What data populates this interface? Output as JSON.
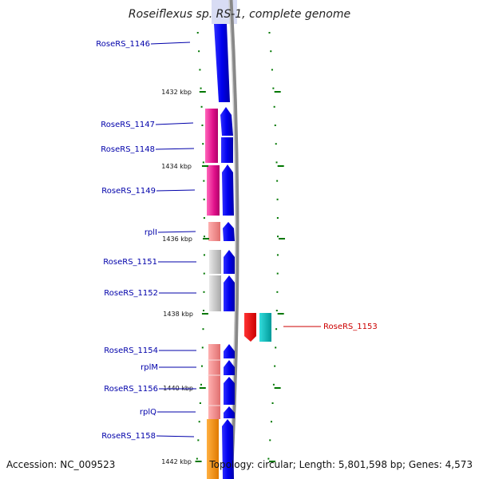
{
  "title": "Roseiflexus sp. RS-1, complete genome",
  "accession": "Accession: NC_009523",
  "topology": "Topology: circular; Length: 5,801,598 bp; Genes: 4,573",
  "ruler": [
    {
      "label": "1432 kbp"
    },
    {
      "label": "1434 kbp"
    },
    {
      "label": "1436 kbp"
    },
    {
      "label": "1438 kbp"
    },
    {
      "label": "1440 kbp"
    },
    {
      "label": "1442 kbp"
    }
  ],
  "genes": [
    {
      "label": "RoseRS_1146"
    },
    {
      "label": "RoseRS_1147"
    },
    {
      "label": "RoseRS_1148"
    },
    {
      "label": "RoseRS_1149"
    },
    {
      "label": "rplI"
    },
    {
      "label": "RoseRS_1151"
    },
    {
      "label": "RoseRS_1152"
    },
    {
      "label": "RoseRS_1153"
    },
    {
      "label": "RoseRS_1154"
    },
    {
      "label": "rplM"
    },
    {
      "label": "RoseRS_1156"
    },
    {
      "label": "rplQ"
    },
    {
      "label": "RoseRS_1158"
    }
  ],
  "colors": {
    "forward_gene": "#0000ee",
    "reverse_gene": "#ee0000",
    "rna": "#00bbbb",
    "backbone": "#999999",
    "tick": "#007700"
  }
}
